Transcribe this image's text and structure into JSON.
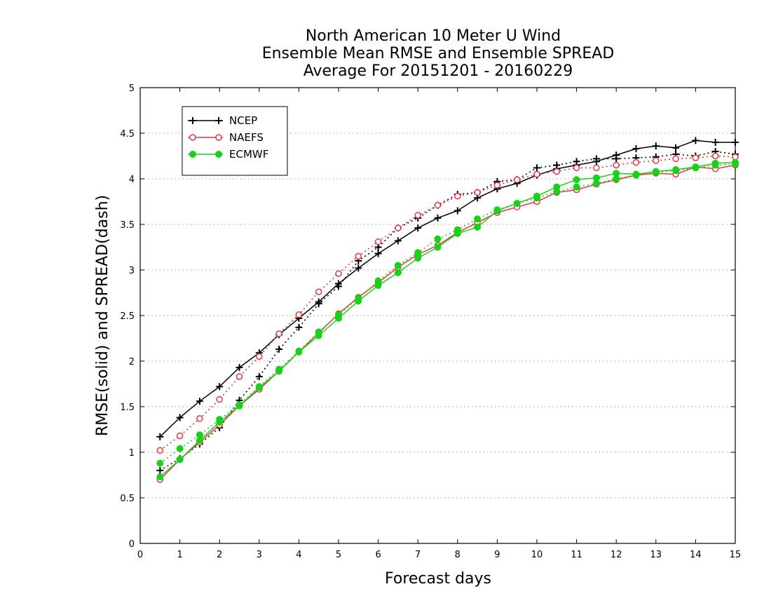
{
  "chart_data": {
    "type": "line",
    "title": [
      "North American 10 Meter U Wind",
      "Ensemble Mean RMSE and Ensemble SPREAD",
      "Average For 20151201 - 20160229"
    ],
    "xlabel": "Forecast days",
    "ylabel": "RMSE(solid) and SPREAD(dash)",
    "xlim": [
      0,
      15
    ],
    "ylim": [
      0,
      5
    ],
    "xticks": [
      0,
      1,
      2,
      3,
      4,
      5,
      6,
      7,
      8,
      9,
      10,
      11,
      12,
      13,
      14,
      15
    ],
    "yticks": [
      0,
      0.5,
      1,
      1.5,
      2,
      2.5,
      3,
      3.5,
      4,
      4.5,
      5
    ],
    "grid": true,
    "legend_position": "top-left",
    "x": [
      0.5,
      1,
      1.5,
      2,
      2.5,
      3,
      3.5,
      4,
      4.5,
      5,
      5.5,
      6,
      6.5,
      7,
      7.5,
      8,
      8.5,
      9,
      9.5,
      10,
      10.5,
      11,
      11.5,
      12,
      12.5,
      13,
      13.5,
      14,
      14.5,
      15
    ],
    "series": [
      {
        "name": "NCEP",
        "color": "#000000",
        "marker": "plus",
        "style": "solid",
        "values": [
          1.17,
          1.38,
          1.56,
          1.72,
          1.93,
          2.09,
          2.29,
          2.47,
          2.65,
          2.85,
          3.02,
          3.18,
          3.32,
          3.46,
          3.57,
          3.65,
          3.79,
          3.89,
          3.95,
          4.04,
          4.11,
          4.15,
          4.19,
          4.26,
          4.33,
          4.36,
          4.34,
          4.42,
          4.4,
          4.4
        ]
      },
      {
        "name": "NCEP",
        "color": "#000000",
        "marker": "plus",
        "style": "dash",
        "values": [
          0.8,
          0.93,
          1.09,
          1.27,
          1.57,
          1.83,
          2.13,
          2.37,
          2.63,
          2.82,
          3.1,
          3.25,
          3.46,
          3.57,
          3.71,
          3.83,
          3.85,
          3.97,
          3.99,
          4.12,
          4.15,
          4.19,
          4.22,
          4.22,
          4.23,
          4.24,
          4.27,
          4.25,
          4.3,
          4.27
        ]
      },
      {
        "name": "NAEFS",
        "color": "#e0373c",
        "marker": "circle-open",
        "style": "solid",
        "values": [
          0.7,
          0.92,
          1.11,
          1.3,
          1.51,
          1.69,
          1.89,
          2.1,
          2.31,
          2.52,
          2.7,
          2.86,
          3.03,
          3.17,
          3.27,
          3.41,
          3.52,
          3.63,
          3.69,
          3.75,
          3.85,
          3.88,
          3.94,
          3.99,
          4.04,
          4.06,
          4.05,
          4.13,
          4.11,
          4.15
        ]
      },
      {
        "name": "NAEFS",
        "color": "#e0373c",
        "marker": "circle-open",
        "style": "dash",
        "values": [
          1.02,
          1.18,
          1.37,
          1.58,
          1.83,
          2.05,
          2.3,
          2.51,
          2.76,
          2.96,
          3.15,
          3.31,
          3.46,
          3.6,
          3.71,
          3.81,
          3.85,
          3.93,
          3.99,
          4.05,
          4.08,
          4.12,
          4.12,
          4.15,
          4.18,
          4.2,
          4.22,
          4.23,
          4.25,
          4.24
        ]
      },
      {
        "name": "ECMWF",
        "color": "#19d11b",
        "marker": "circle-filled",
        "style": "solid",
        "values": [
          0.73,
          0.92,
          1.13,
          1.33,
          1.51,
          1.71,
          1.89,
          2.1,
          2.28,
          2.47,
          2.66,
          2.83,
          2.97,
          3.13,
          3.25,
          3.4,
          3.47,
          3.65,
          3.73,
          3.81,
          3.91,
          3.99,
          4.01,
          4.06,
          4.05,
          4.08,
          4.1,
          4.13,
          4.17,
          4.18
        ]
      },
      {
        "name": "ECMWF",
        "color": "#19d11b",
        "marker": "circle-filled",
        "style": "dash",
        "values": [
          0.88,
          1.04,
          1.19,
          1.36,
          1.52,
          1.72,
          1.91,
          2.11,
          2.32,
          2.51,
          2.69,
          2.88,
          3.05,
          3.19,
          3.34,
          3.44,
          3.56,
          3.66,
          3.73,
          3.79,
          3.86,
          3.91,
          3.95,
          4.0,
          4.04,
          4.07,
          4.09,
          4.12,
          4.15,
          4.16
        ]
      }
    ],
    "legend": [
      {
        "name": "NCEP",
        "color": "#000000",
        "marker": "plus"
      },
      {
        "name": "NAEFS",
        "color": "#e0373c",
        "marker": "circle-open"
      },
      {
        "name": "ECMWF",
        "color": "#19d11b",
        "marker": "circle-filled"
      }
    ]
  }
}
